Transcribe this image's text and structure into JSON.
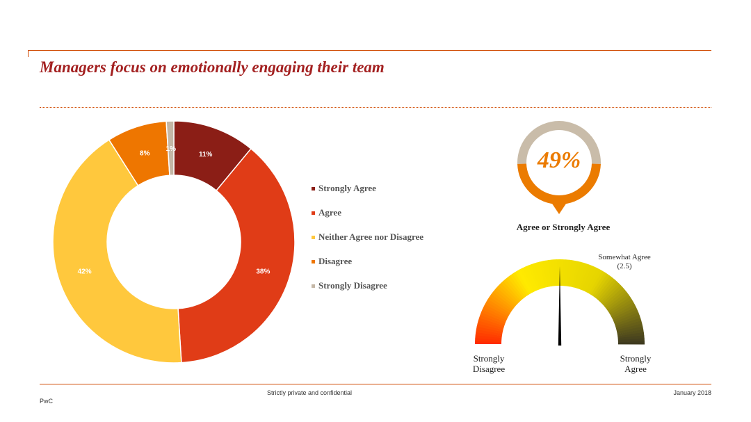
{
  "slide": {
    "title": "Managers focus on emotionally engaging their team"
  },
  "chart_data": [
    {
      "type": "pie",
      "variant": "donut",
      "categories": [
        "Strongly Agree",
        "Agree",
        "Neither Agree nor Disagree",
        "Disagree",
        "Strongly Disagree"
      ],
      "values": [
        11,
        38,
        42,
        8,
        1
      ],
      "data_labels": [
        "11%",
        "38%",
        "42%",
        "8%",
        "1%"
      ],
      "colors": [
        "#8b1e16",
        "#e03c17",
        "#ffc83d",
        "#ee7600",
        "#c4b7a6"
      ],
      "legend_position": "right"
    },
    {
      "type": "ring",
      "value": 49,
      "value_label": "49%",
      "caption": "Agree or Strongly Agree",
      "colors": {
        "value": "#eb7b00",
        "remainder": "#c9bca9"
      }
    },
    {
      "type": "gauge",
      "min": 1,
      "max": 4,
      "value": 2.5,
      "min_label": [
        "Strongly",
        "Disagree"
      ],
      "max_label": [
        "Strongly",
        "Agree"
      ],
      "annotation": [
        "Somewhat Agree",
        "(2.5)"
      ],
      "colors": [
        "#ff2a00",
        "#ffea00",
        "#e6d500",
        "#3c3820"
      ]
    }
  ],
  "footer": {
    "confidentiality": "Strictly private and confidential",
    "date": "January 2018",
    "brand": "PwC"
  }
}
